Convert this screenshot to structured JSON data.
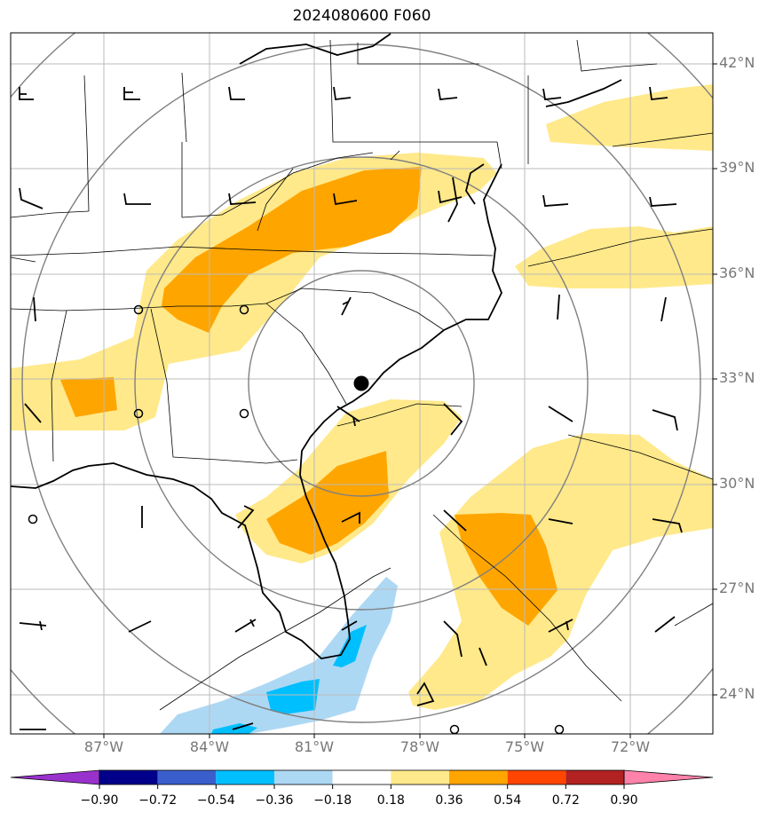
{
  "title": "2024080600 F060",
  "lat_labels": [
    "42°N",
    "39°N",
    "36°N",
    "33°N",
    "30°N",
    "27°N",
    "24°N"
  ],
  "lon_labels": [
    "87°W",
    "84°W",
    "81°W",
    "78°W",
    "75°W",
    "72°W"
  ],
  "colorbar": {
    "ticks": [
      "−0.90",
      "−0.72",
      "−0.54",
      "−0.36",
      "−0.18",
      "0.18",
      "0.36",
      "0.54",
      "0.72",
      "0.90"
    ],
    "colors": [
      "#9932cc",
      "#00008b",
      "#3a5fcd",
      "#00bfff",
      "#add8f4",
      "#ffffff",
      "#ffe98a",
      "#ffa500",
      "#ff4500",
      "#b22222",
      "#ff82ab"
    ],
    "extend": "both"
  },
  "center_marker": "filled-circle",
  "features": {
    "contour_colors": {
      "light": "#ffe98a",
      "medium": "#ffa500",
      "light_blue": "#add8f4",
      "blue": "#00bfff"
    },
    "range_rings": "concentric circles around center point",
    "wind_barbs": true,
    "calm_station_circles": true
  }
}
